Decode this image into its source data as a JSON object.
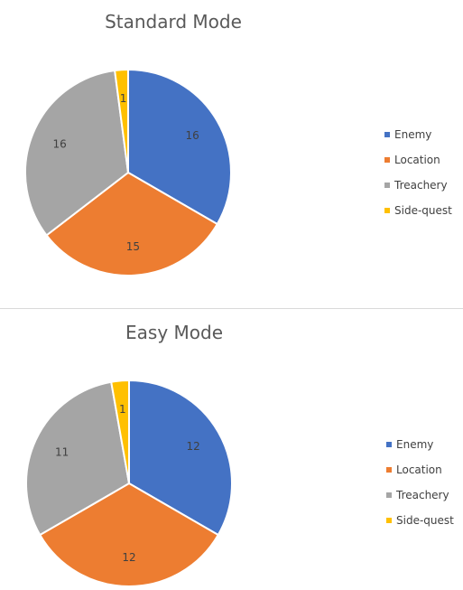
{
  "chart_data": [
    {
      "type": "pie",
      "title": "Standard Mode",
      "categories": [
        "Enemy",
        "Location",
        "Treachery",
        "Side-quest"
      ],
      "values": [
        16,
        15,
        16,
        1
      ],
      "colors": [
        "#4472C4",
        "#ED7D31",
        "#A5A5A5",
        "#FFC000"
      ],
      "start_angle_deg": 0,
      "direction": "clockwise",
      "data_labels": true,
      "legend_position": "right"
    },
    {
      "type": "pie",
      "title": "Easy Mode",
      "categories": [
        "Enemy",
        "Location",
        "Treachery",
        "Side-quest"
      ],
      "values": [
        12,
        12,
        11,
        1
      ],
      "colors": [
        "#4472C4",
        "#ED7D31",
        "#A5A5A5",
        "#FFC000"
      ],
      "start_angle_deg": 0,
      "direction": "clockwise",
      "data_labels": true,
      "legend_position": "right"
    }
  ]
}
